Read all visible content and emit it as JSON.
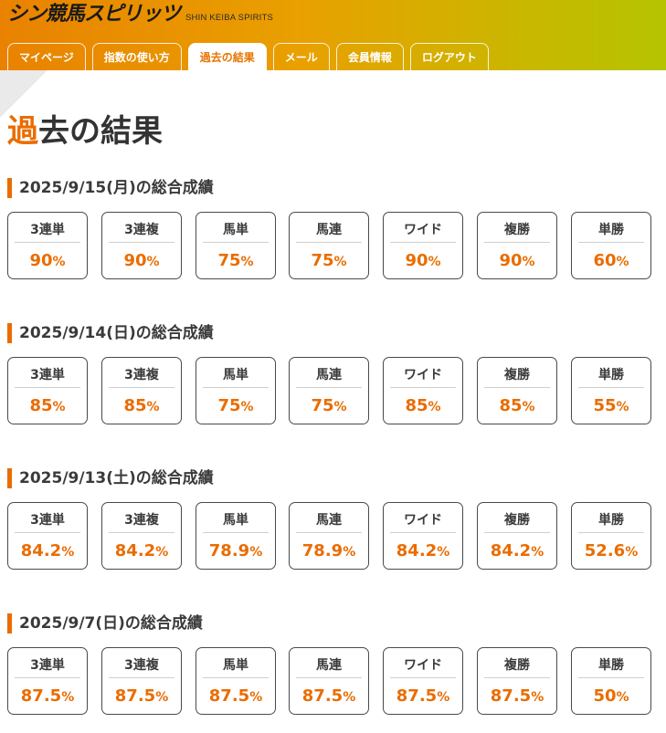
{
  "brand": {
    "logo_text": "シン競馬スピリッツ",
    "logo_sub": "SHIN KEIBA SPIRITS"
  },
  "colors": {
    "accent": "#ea6c00",
    "header_start": "#e98200",
    "header_end": "#b5c400"
  },
  "nav": {
    "tabs": [
      {
        "label": "マイページ"
      },
      {
        "label": "指数の使い方"
      },
      {
        "label": "過去の結果",
        "active": true
      },
      {
        "label": "メール"
      },
      {
        "label": "会員情報"
      },
      {
        "label": "ログアウト"
      }
    ]
  },
  "page": {
    "title_first": "過",
    "title_rest": "去の結果"
  },
  "sections": [
    {
      "title": "2025/9/15(月)の総合成績",
      "results": [
        {
          "label": "3連単",
          "value": "90",
          "unit": "%"
        },
        {
          "label": "3連複",
          "value": "90",
          "unit": "%"
        },
        {
          "label": "馬単",
          "value": "75",
          "unit": "%"
        },
        {
          "label": "馬連",
          "value": "75",
          "unit": "%"
        },
        {
          "label": "ワイド",
          "value": "90",
          "unit": "%"
        },
        {
          "label": "複勝",
          "value": "90",
          "unit": "%"
        },
        {
          "label": "単勝",
          "value": "60",
          "unit": "%"
        }
      ]
    },
    {
      "title": "2025/9/14(日)の総合成績",
      "results": [
        {
          "label": "3連単",
          "value": "85",
          "unit": "%"
        },
        {
          "label": "3連複",
          "value": "85",
          "unit": "%"
        },
        {
          "label": "馬単",
          "value": "75",
          "unit": "%"
        },
        {
          "label": "馬連",
          "value": "75",
          "unit": "%"
        },
        {
          "label": "ワイド",
          "value": "85",
          "unit": "%"
        },
        {
          "label": "複勝",
          "value": "85",
          "unit": "%"
        },
        {
          "label": "単勝",
          "value": "55",
          "unit": "%"
        }
      ]
    },
    {
      "title": "2025/9/13(土)の総合成績",
      "results": [
        {
          "label": "3連単",
          "value": "84.2",
          "unit": "%"
        },
        {
          "label": "3連複",
          "value": "84.2",
          "unit": "%"
        },
        {
          "label": "馬単",
          "value": "78.9",
          "unit": "%"
        },
        {
          "label": "馬連",
          "value": "78.9",
          "unit": "%"
        },
        {
          "label": "ワイド",
          "value": "84.2",
          "unit": "%"
        },
        {
          "label": "複勝",
          "value": "84.2",
          "unit": "%"
        },
        {
          "label": "単勝",
          "value": "52.6",
          "unit": "%"
        }
      ]
    },
    {
      "title": "2025/9/7(日)の総合成績",
      "results": [
        {
          "label": "3連単",
          "value": "87.5",
          "unit": "%"
        },
        {
          "label": "3連複",
          "value": "87.5",
          "unit": "%"
        },
        {
          "label": "馬単",
          "value": "87.5",
          "unit": "%"
        },
        {
          "label": "馬連",
          "value": "87.5",
          "unit": "%"
        },
        {
          "label": "ワイド",
          "value": "87.5",
          "unit": "%"
        },
        {
          "label": "複勝",
          "value": "87.5",
          "unit": "%"
        },
        {
          "label": "単勝",
          "value": "50",
          "unit": "%"
        }
      ]
    }
  ]
}
